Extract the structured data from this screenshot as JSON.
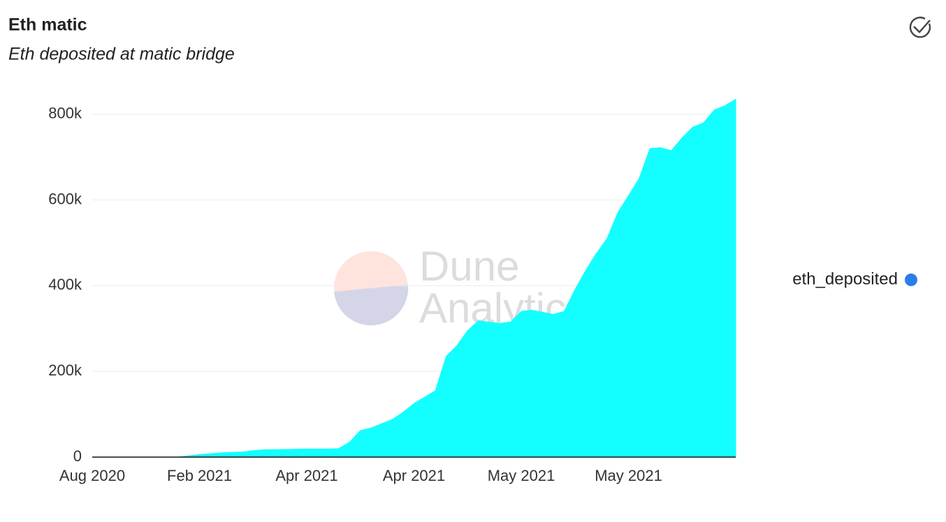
{
  "chart_data": {
    "type": "area",
    "title": "Eth matic",
    "subtitle": "Eth deposited at matic bridge",
    "watermark": [
      "Dune",
      "Analytics"
    ],
    "categories": [
      "Aug 2020",
      null,
      null,
      null,
      null,
      null,
      null,
      null,
      null,
      null,
      "Feb 2021",
      null,
      null,
      null,
      null,
      null,
      null,
      null,
      null,
      null,
      "Apr 2021",
      null,
      null,
      null,
      null,
      null,
      null,
      null,
      null,
      null,
      "Apr 2021",
      null,
      null,
      null,
      null,
      null,
      null,
      null,
      null,
      null,
      "May 2021",
      null,
      null,
      null,
      null,
      null,
      null,
      null,
      null,
      null,
      "May 2021",
      null,
      null,
      null,
      null,
      null,
      null,
      null,
      null,
      null,
      null
    ],
    "series": [
      {
        "name": "eth_deposited",
        "color": "#13ffff",
        "legend_color": "#2b7de9",
        "values": [
          0,
          0,
          0,
          0,
          0,
          0,
          0,
          0,
          0,
          3000,
          6000,
          8000,
          10000,
          11000,
          12000,
          15000,
          17000,
          17500,
          18000,
          18500,
          19000,
          19000,
          19000,
          20000,
          35000,
          62000,
          68000,
          78000,
          88000,
          105000,
          125000,
          140000,
          155000,
          235000,
          260000,
          295000,
          318000,
          315000,
          312000,
          315000,
          340000,
          343000,
          338000,
          333000,
          340000,
          390000,
          435000,
          475000,
          510000,
          570000,
          610000,
          650000,
          720000,
          722000,
          715000,
          745000,
          770000,
          780000,
          810000,
          820000,
          835000
        ]
      }
    ],
    "ylim": [
      0,
      850000
    ],
    "yticks": [
      0,
      {
        "value": 200000,
        "label": "200k"
      },
      {
        "value": 400000,
        "label": "400k"
      },
      {
        "value": 600000,
        "label": "600k"
      },
      {
        "value": 800000,
        "label": "800k"
      }
    ],
    "grid": true,
    "legend": "right"
  }
}
